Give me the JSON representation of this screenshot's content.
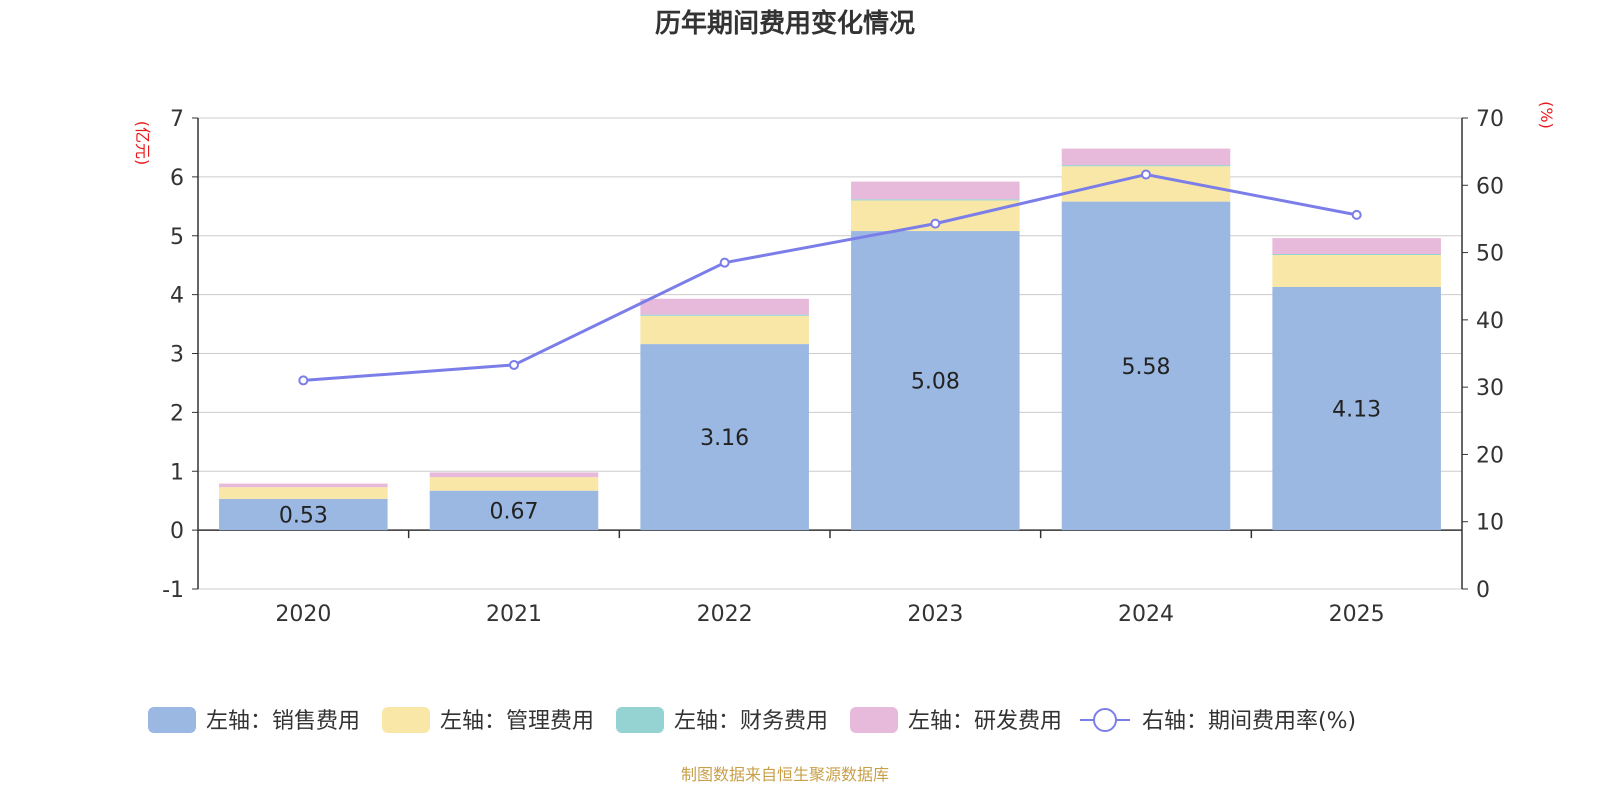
{
  "chart_data": {
    "type": "bar",
    "title": "历年期间费用变化情况",
    "categories": [
      "2020",
      "2021",
      "2022",
      "2023",
      "2024",
      "2025"
    ],
    "left_axis": {
      "unit": "(亿元)",
      "ylim": [
        -1,
        7
      ],
      "ticks": [
        -1,
        0,
        1,
        2,
        3,
        4,
        5,
        6,
        7
      ]
    },
    "right_axis": {
      "unit": "(%)",
      "ylim": [
        0,
        70
      ],
      "ticks": [
        0,
        10,
        20,
        30,
        40,
        50,
        60,
        70
      ]
    },
    "series": [
      {
        "name": "左轴：销售费用",
        "type": "bar",
        "axis": "left",
        "color": "#9bb8e2",
        "values": [
          0.53,
          0.67,
          3.16,
          5.08,
          5.58,
          4.13
        ],
        "labels": [
          "0.53",
          "0.67",
          "3.16",
          "5.08",
          "5.58",
          "4.13"
        ]
      },
      {
        "name": "左轴：管理费用",
        "type": "bar",
        "axis": "left",
        "color": "#f8e7a6",
        "values": [
          0.2,
          0.23,
          0.48,
          0.52,
          0.6,
          0.55
        ]
      },
      {
        "name": "左轴：财务费用",
        "type": "bar",
        "axis": "left",
        "color": "#95d3d3",
        "values": [
          0.0,
          0.0,
          0.02,
          0.02,
          0.02,
          0.01
        ]
      },
      {
        "name": "左轴：研发费用",
        "type": "bar",
        "axis": "left",
        "color": "#e7b9da",
        "values": [
          0.06,
          0.08,
          0.27,
          0.3,
          0.28,
          0.27
        ]
      },
      {
        "name": "右轴：期间费用率(%)",
        "type": "line",
        "axis": "right",
        "color": "#7b7ee8",
        "values": [
          31.0,
          33.3,
          48.5,
          54.3,
          61.6,
          55.6
        ]
      }
    ],
    "legend_position": "bottom",
    "grid": true
  },
  "source_note": "制图数据来自恒生聚源数据库"
}
